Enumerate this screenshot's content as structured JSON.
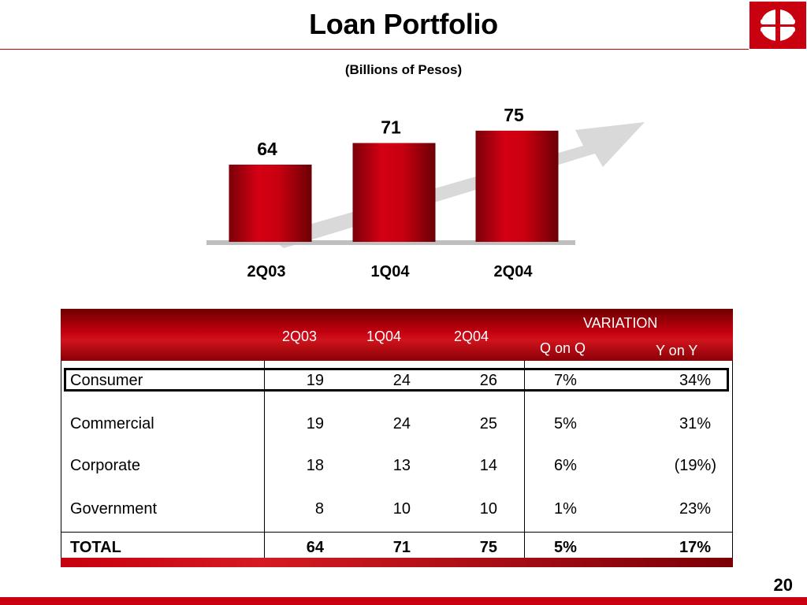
{
  "title": "Loan Portfolio",
  "subtitle": "(Billions of Pesos)",
  "page_number": "20",
  "colors": {
    "brand_red": "#c8000f",
    "arrow_gray": "#d9d9d9",
    "baseline_gray": "#bfbfbf"
  },
  "chart_data": {
    "type": "bar",
    "categories": [
      "2Q03",
      "1Q04",
      "2Q04"
    ],
    "values": [
      64,
      71,
      75
    ],
    "value_labels": [
      "64",
      "71",
      "75"
    ],
    "title": "",
    "xlabel": "",
    "ylabel": "",
    "grid": false,
    "decoration": "gray up-trend arrow behind bars"
  },
  "table": {
    "header": {
      "col1": "2Q03",
      "col2": "1Q04",
      "col3": "2Q04",
      "variation": "VARIATION",
      "qonq": "Q on Q",
      "yony": "Y on Y"
    },
    "rows": [
      {
        "name": "Consumer",
        "v1": "19",
        "v2": "24",
        "v3": "26",
        "q": "7%",
        "y": "34%"
      },
      {
        "name": "Commercial",
        "v1": "19",
        "v2": "24",
        "v3": "25",
        "q": "5%",
        "y": "31%"
      },
      {
        "name": "Corporate",
        "v1": "18",
        "v2": "13",
        "v3": "14",
        "q": "6%",
        "y": "(19%)"
      },
      {
        "name": "Government",
        "v1": "8",
        "v2": "10",
        "v3": "10",
        "q": "1%",
        "y": "23%"
      }
    ],
    "total": {
      "name": "TOTAL",
      "v1": "64",
      "v2": "71",
      "v3": "75",
      "q": "5%",
      "y": "17%"
    }
  }
}
